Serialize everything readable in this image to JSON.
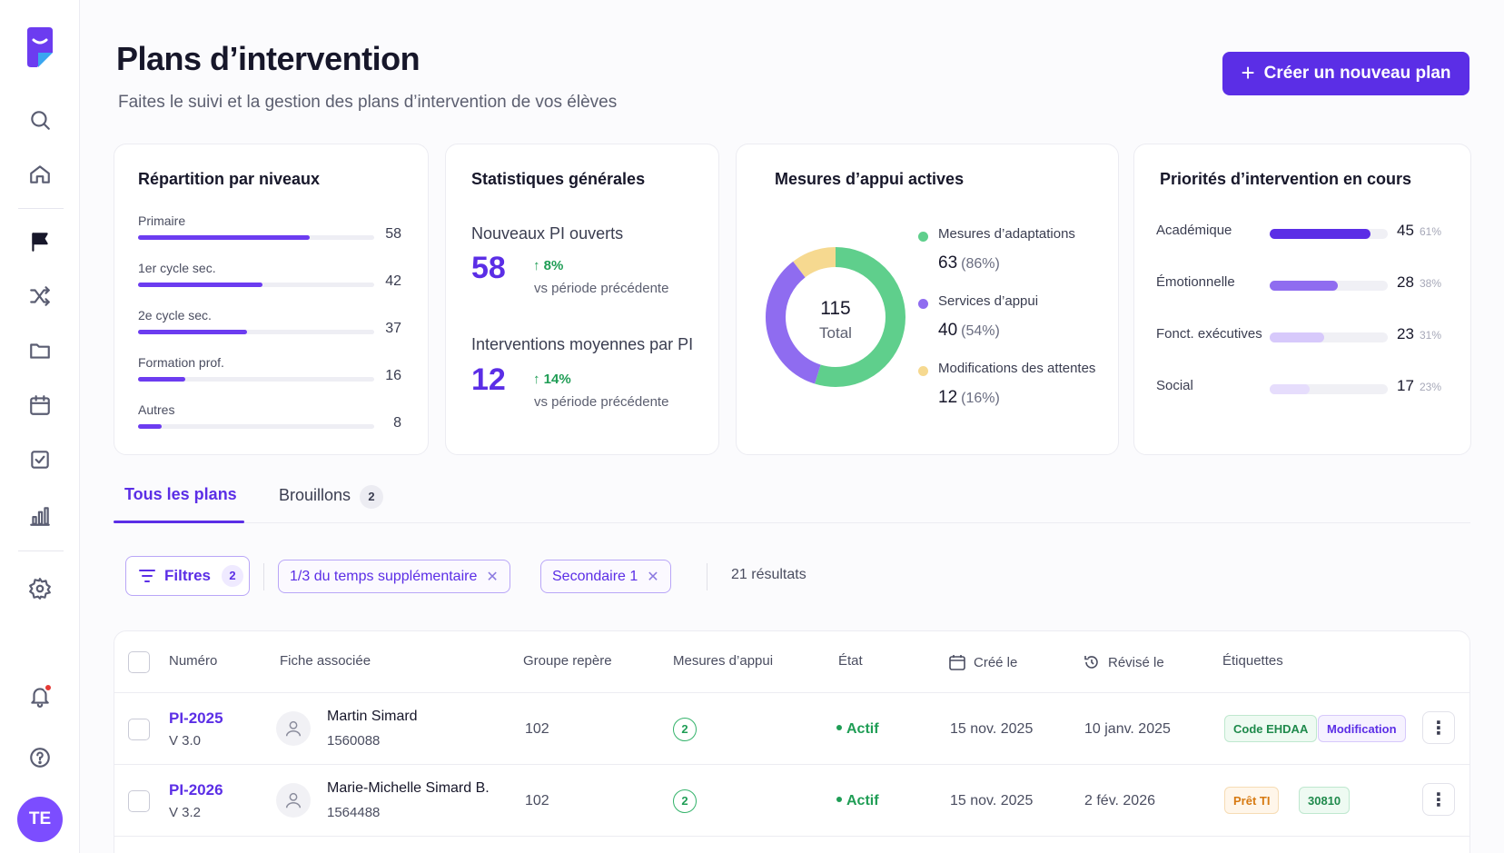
{
  "header": {
    "title": "Plans d’intervention",
    "subtitle": "Faites le suivi et la gestion des plans d’intervention de vos élèves",
    "create_button": "Créer un nouveau plan"
  },
  "sidebar": {
    "avatar_initials": "TE",
    "icons": [
      "search-icon",
      "home-icon",
      "flag-icon",
      "shuffle-icon",
      "folder-icon",
      "calendar-icon",
      "checklist-icon",
      "bar-chart-icon",
      "gear-icon",
      "bell-icon",
      "help-icon"
    ],
    "active": "flag-icon"
  },
  "levels": {
    "title": "Répartition par niveaux",
    "max": 80,
    "items": [
      {
        "label": "Primaire",
        "value": 58
      },
      {
        "label": "1er cycle sec.",
        "value": 42
      },
      {
        "label": "2e cycle sec.",
        "value": 37
      },
      {
        "label": "Formation prof.",
        "value": 16
      },
      {
        "label": "Autres",
        "value": 8
      }
    ]
  },
  "stats": {
    "title": "Statistiques générales",
    "new_label": "Nouveaux PI ouverts",
    "new_value": "58",
    "new_trend": "8%",
    "new_sub": "vs période précédente",
    "avg_label": "Interventions moyennes par PI",
    "avg_value": "12",
    "avg_trend": "14%",
    "avg_sub": "vs période précédente"
  },
  "measures": {
    "title": "Mesures d’appui actives",
    "total": "115",
    "total_label": "Total",
    "items": [
      {
        "label": "Mesures d’adaptations",
        "value": "63",
        "pct": "(86%)",
        "color": "#5fcf8c",
        "share": 63
      },
      {
        "label": "Services d’appui",
        "value": "40",
        "pct": "(54%)",
        "color": "#8f6cf0",
        "share": 40
      },
      {
        "label": "Modifications des attentes",
        "value": "12",
        "pct": "(16%)",
        "color": "#f6d990",
        "share": 12
      }
    ]
  },
  "priorities": {
    "title": "Priorités d’intervention en cours",
    "items": [
      {
        "label": "Académique",
        "value": "45",
        "pct": "61%",
        "fill": 0.85,
        "color": "#5b2ee6"
      },
      {
        "label": "Émotionnelle",
        "value": "28",
        "pct": "38%",
        "fill": 0.58,
        "color": "#8f6cf0"
      },
      {
        "label": "Fonct. exécutives",
        "value": "23",
        "pct": "31%",
        "fill": 0.46,
        "color": "#d7c9fb"
      },
      {
        "label": "Social",
        "value": "17",
        "pct": "23%",
        "fill": 0.34,
        "color": "#e6ddfc"
      }
    ]
  },
  "tabs": {
    "all": "Tous les plans",
    "drafts": "Brouillons",
    "drafts_count": "2"
  },
  "filters": {
    "button": "Filtres",
    "count": "2",
    "chip1": "1/3 du temps supplémentaire",
    "chip2": "Secondaire 1",
    "results": "21 résultats"
  },
  "table": {
    "headers": {
      "numero": "Numéro",
      "fiche": "Fiche associée",
      "groupe": "Groupe repère",
      "mesures": "Mesures d’appui",
      "etat": "État",
      "cree": "Créé le",
      "revise": "Révisé le",
      "etiquettes": "Étiquettes"
    },
    "rows": [
      {
        "numero": "PI-2025",
        "version": "V 3.0",
        "name": "Martin Simard",
        "id": "1560088",
        "groupe": "102",
        "mesures": "2",
        "etat": "Actif",
        "cree": "15 nov. 2025",
        "revise": "10 janv. 2025",
        "tag1": "Code EHDAA",
        "tag2": "Modification"
      },
      {
        "numero": "PI-2026",
        "version": "V 3.2",
        "name": "Marie-Michelle Simard B.",
        "id": "1564488",
        "groupe": "102",
        "mesures": "2",
        "etat": "Actif",
        "cree": "15 nov. 2025",
        "revise": "2 fév. 2026",
        "tag1": "Prêt TI",
        "tag2": "30810"
      }
    ]
  }
}
